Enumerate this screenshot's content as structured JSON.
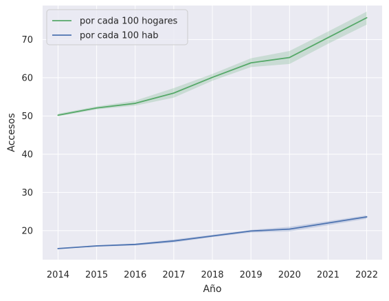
{
  "chart_data": {
    "type": "line",
    "title": "",
    "xlabel": "Año",
    "ylabel": "Accesos",
    "x": [
      2014,
      2015,
      2016,
      2017,
      2018,
      2019,
      2020,
      2021,
      2022
    ],
    "xlim": [
      2013.6,
      2022.4
    ],
    "ylim": [
      12.4,
      78.9
    ],
    "yticks": [
      20,
      30,
      40,
      50,
      60,
      70
    ],
    "grid": true,
    "legend_position": "top-left",
    "series": [
      {
        "name": "por cada 100 hogares",
        "color": "#55a868",
        "values": [
          50.2,
          52.1,
          53.3,
          56.0,
          60.1,
          63.9,
          65.3,
          70.5,
          75.7
        ],
        "band_low": [
          49.9,
          51.7,
          52.7,
          54.8,
          59.2,
          62.8,
          63.6,
          68.9,
          73.9
        ],
        "band_high": [
          50.6,
          52.5,
          54.0,
          57.3,
          61.0,
          65.1,
          67.0,
          72.1,
          77.3
        ]
      },
      {
        "name": "por cada 100 hab",
        "color": "#4c72b0",
        "values": [
          15.3,
          16.0,
          16.4,
          17.3,
          18.6,
          19.9,
          20.4,
          22.0,
          23.6
        ],
        "band_low": [
          15.2,
          15.8,
          16.1,
          16.9,
          18.3,
          19.5,
          19.8,
          21.4,
          23.1
        ],
        "band_high": [
          15.4,
          16.1,
          16.6,
          17.7,
          18.9,
          20.2,
          21.0,
          22.5,
          24.0
        ]
      }
    ]
  }
}
